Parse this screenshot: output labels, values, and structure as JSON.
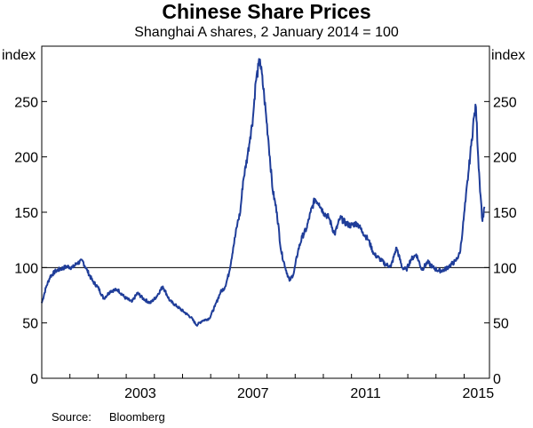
{
  "chart_data": {
    "type": "line",
    "title": "Chinese Share Prices",
    "subtitle": "Shanghai A shares, 2 January 2014 = 100",
    "ylabel_left": "index",
    "ylabel_right": "index",
    "ylim": [
      0,
      300
    ],
    "yticks": [
      0,
      50,
      100,
      150,
      200,
      250
    ],
    "xlim": [
      2000.0,
      2015.9
    ],
    "xticks": [
      2003,
      2007,
      2011,
      2015
    ],
    "reference_line": 100,
    "grid": false,
    "source": {
      "label": "Source:",
      "value": "Bloomberg"
    },
    "series": [
      {
        "color": "#1f3d99",
        "x": [
          2000.0,
          2000.15,
          2000.3,
          2000.5,
          2000.7,
          2000.9,
          2001.1,
          2001.25,
          2001.45,
          2001.6,
          2001.8,
          2002.0,
          2002.2,
          2002.45,
          2002.7,
          2002.95,
          2003.2,
          2003.4,
          2003.6,
          2003.85,
          2004.05,
          2004.3,
          2004.55,
          2004.8,
          2005.05,
          2005.3,
          2005.5,
          2005.7,
          2005.95,
          2006.15,
          2006.35,
          2006.5,
          2006.65,
          2006.8,
          2006.95,
          2007.05,
          2007.15,
          2007.3,
          2007.4,
          2007.5,
          2007.6,
          2007.75,
          2007.9,
          2008.05,
          2008.2,
          2008.35,
          2008.5,
          2008.65,
          2008.8,
          2008.95,
          2009.1,
          2009.25,
          2009.4,
          2009.55,
          2009.7,
          2009.85,
          2010.0,
          2010.2,
          2010.4,
          2010.6,
          2010.8,
          2010.95,
          2011.2,
          2011.4,
          2011.6,
          2011.8,
          2012.0,
          2012.2,
          2012.4,
          2012.6,
          2012.8,
          2012.95,
          2013.1,
          2013.3,
          2013.5,
          2013.7,
          2013.9,
          2014.1,
          2014.3,
          2014.5,
          2014.7,
          2014.85,
          2014.95,
          2015.05,
          2015.15,
          2015.25,
          2015.35,
          2015.42,
          2015.5,
          2015.55,
          2015.6,
          2015.65,
          2015.72
        ],
        "y": [
          68,
          82,
          92,
          97,
          99,
          101,
          100,
          104,
          106,
          98,
          88,
          82,
          72,
          79,
          80,
          73,
          69,
          77,
          72,
          68,
          73,
          83,
          70,
          65,
          60,
          55,
          48,
          52,
          54,
          65,
          78,
          82,
          95,
          118,
          140,
          150,
          178,
          200,
          218,
          235,
          268,
          288,
          255,
          215,
          170,
          150,
          115,
          100,
          88,
          95,
          115,
          128,
          135,
          150,
          162,
          158,
          150,
          145,
          130,
          145,
          140,
          138,
          140,
          132,
          125,
          112,
          108,
          103,
          101,
          118,
          100,
          98,
          107,
          112,
          98,
          105,
          100,
          97,
          98,
          102,
          106,
          113,
          135,
          160,
          185,
          210,
          236,
          245,
          200,
          178,
          160,
          142,
          155
        ]
      }
    ]
  }
}
